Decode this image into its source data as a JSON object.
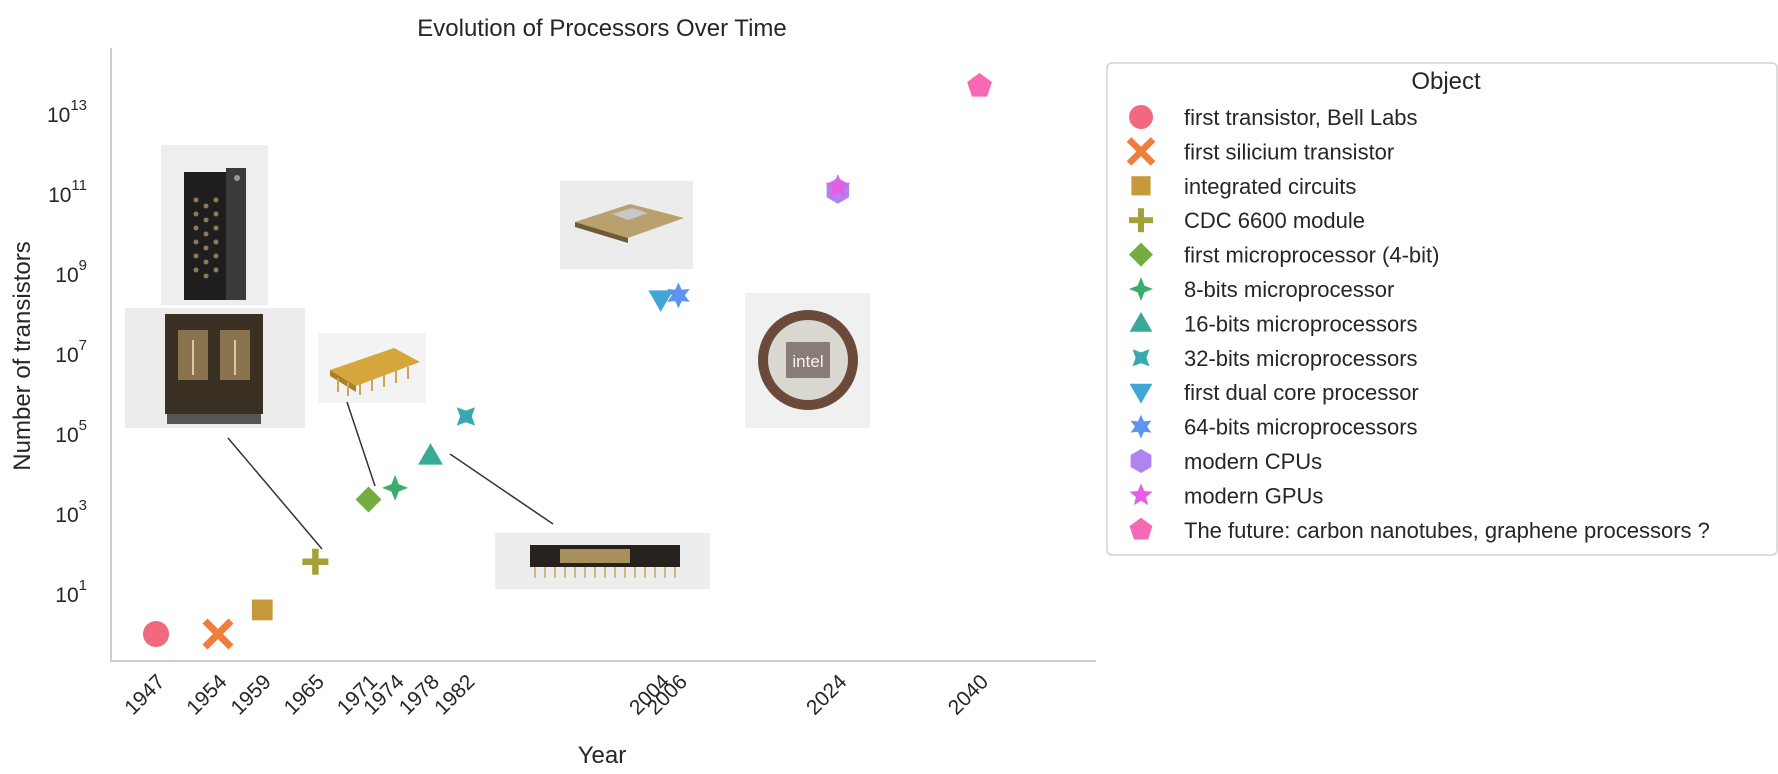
{
  "chart_data": {
    "type": "scatter",
    "title": "Evolution of Processors Over Time",
    "xlabel": "Year",
    "ylabel": "Number of transistors",
    "y_scale": "log",
    "x_ticks": [
      1947,
      1954,
      1959,
      1965,
      1971,
      1974,
      1978,
      1982,
      2004,
      2006,
      2024,
      2040
    ],
    "y_ticks": [
      {
        "base": "10",
        "exp": "1"
      },
      {
        "base": "10",
        "exp": "3"
      },
      {
        "base": "10",
        "exp": "5"
      },
      {
        "base": "10",
        "exp": "7"
      },
      {
        "base": "10",
        "exp": "9"
      },
      {
        "base": "10",
        "exp": "11"
      },
      {
        "base": "10",
        "exp": "13"
      }
    ],
    "ylim": [
      0.3,
      300000000000000
    ],
    "grid": false,
    "legend": {
      "title": "Object",
      "placement": "outside-right"
    },
    "series": [
      {
        "name": "first transistor, Bell Labs",
        "x": 1947,
        "y": 1,
        "marker": "circle",
        "color": "#f0697f"
      },
      {
        "name": "first silicium transistor",
        "x": 1954,
        "y": 1,
        "marker": "x",
        "color": "#ee7f3b"
      },
      {
        "name": "integrated circuits",
        "x": 1959,
        "y": 4,
        "marker": "square",
        "color": "#c69a3a"
      },
      {
        "name": "CDC 6600 module",
        "x": 1965,
        "y": 64,
        "marker": "plus",
        "color": "#a3a23a"
      },
      {
        "name": "first microprocessor (4-bit)",
        "x": 1971,
        "y": 2300,
        "marker": "diamond",
        "color": "#72ad3d"
      },
      {
        "name": "8-bits microprocessor",
        "x": 1974,
        "y": 4500,
        "marker": "star4",
        "color": "#3aad6e"
      },
      {
        "name": "16-bits microprocessors",
        "x": 1978,
        "y": 29000,
        "marker": "triangle-up",
        "color": "#38aa95"
      },
      {
        "name": "32-bits microprocessors",
        "x": 1982,
        "y": 275000,
        "marker": "pinwheel",
        "color": "#3aa8b0"
      },
      {
        "name": "first dual core processor",
        "x": 2004,
        "y": 230000000,
        "marker": "triangle-down",
        "color": "#40a6d6"
      },
      {
        "name": "64-bits microprocessors",
        "x": 2006,
        "y": 291000000,
        "marker": "star6",
        "color": "#5f94ee"
      },
      {
        "name": "modern CPUs",
        "x": 2024,
        "y": 120000000000,
        "marker": "hexagon",
        "color": "#b084f0"
      },
      {
        "name": "modern GPUs",
        "x": 2024,
        "y": 150000000000,
        "marker": "star5",
        "color": "#e45fe6"
      },
      {
        "name": "The future: carbon nanotubes, graphene processors ?",
        "x": 2040,
        "y": 50000000000000,
        "marker": "pentagon",
        "color": "#f569b5"
      }
    ]
  }
}
